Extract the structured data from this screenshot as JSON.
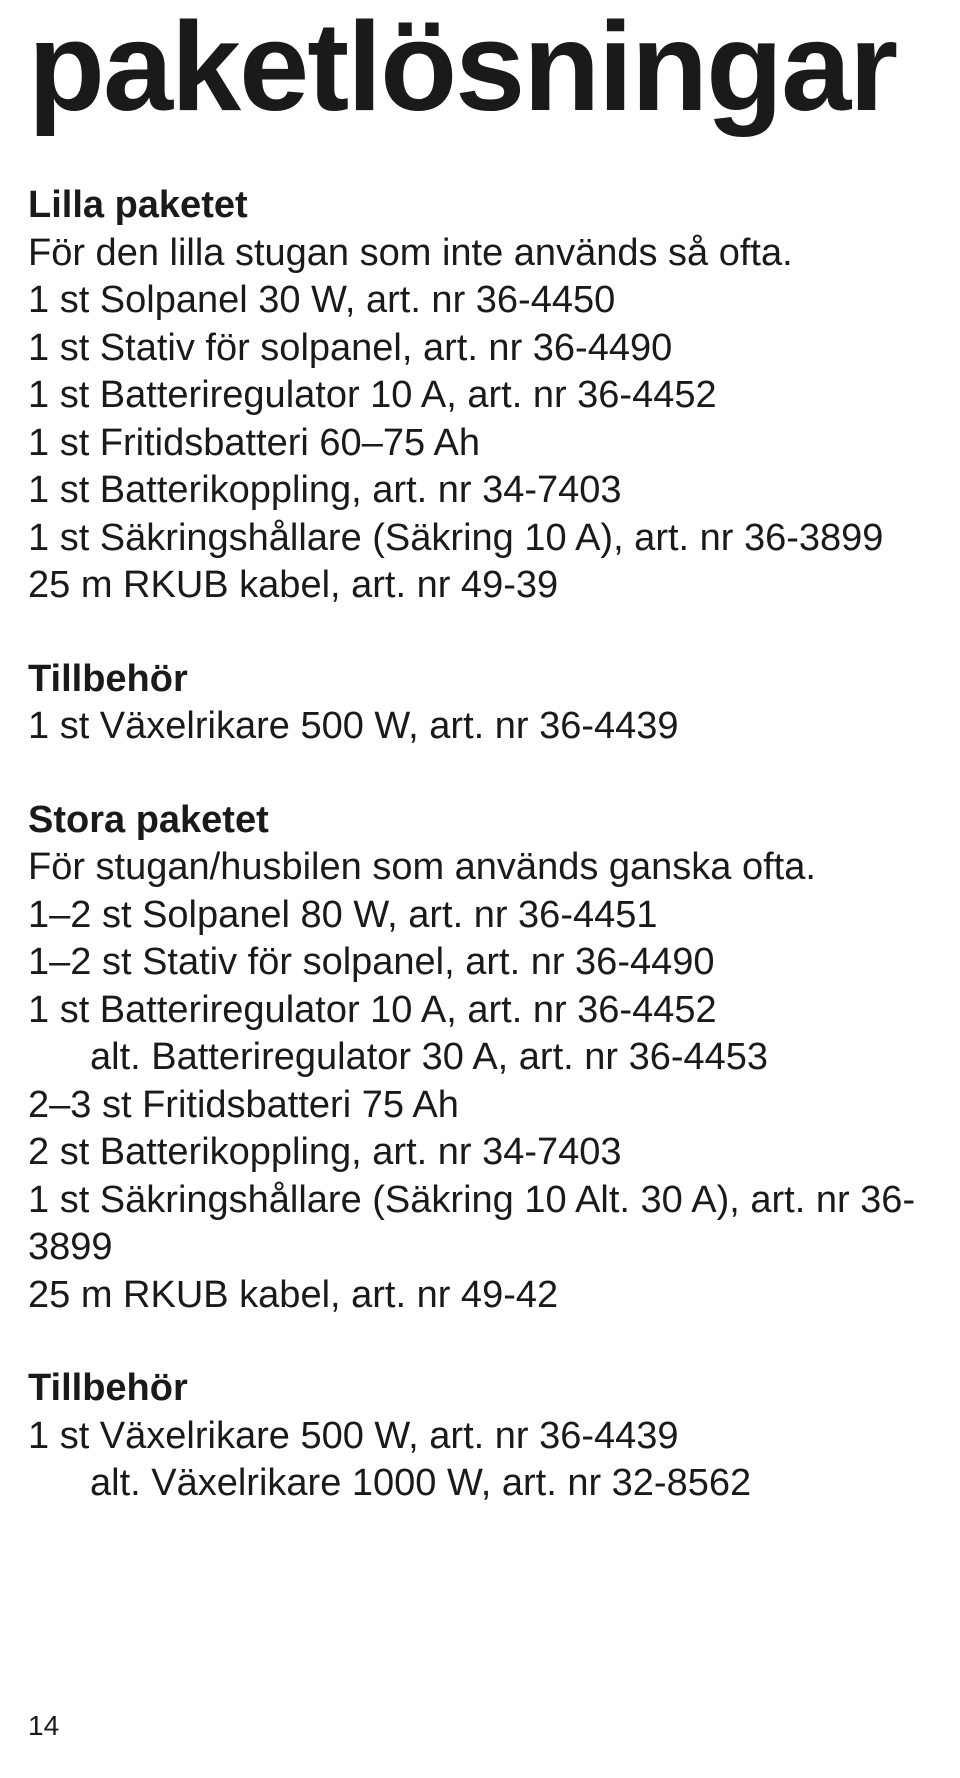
{
  "title": "paketlösningar",
  "lilla": {
    "heading": "Lilla paketet",
    "desc": "För den lilla stugan som inte används så ofta.",
    "lines": [
      "1 st Solpanel 30 W, art. nr 36-4450",
      "1 st Stativ för solpanel, art. nr 36-4490",
      "1 st Batteriregulator 10 A, art. nr 36-4452",
      "1 st Fritidsbatteri 60–75 Ah",
      "1 st Batterikoppling, art. nr 34-7403",
      "1 st Säkringshållare (Säkring 10 A), art. nr 36-3899",
      "25 m RKUB kabel, art. nr 49-39"
    ]
  },
  "tillbehor1": {
    "heading": "Tillbehör",
    "line": "1 st Växelrikare 500 W, art. nr 36-4439"
  },
  "stora": {
    "heading": "Stora paketet",
    "desc": "För stugan/husbilen som används ganska ofta.",
    "lines": [
      "1–2 st Solpanel 80 W, art. nr 36-4451",
      "1–2 st Stativ för solpanel, art. nr 36-4490",
      "1 st Batteriregulator 10 A, art. nr 36-4452"
    ],
    "alt1": "alt. Batteriregulator 30 A, art. nr 36-4453",
    "lines2": [
      "2–3 st Fritidsbatteri 75 Ah",
      "2 st Batterikoppling, art. nr 34-7403",
      "1 st Säkringshållare (Säkring 10 Alt. 30 A), art. nr 36-3899",
      "25 m RKUB kabel, art. nr 49-42"
    ]
  },
  "tillbehor2": {
    "heading": "Tillbehör",
    "line": "1 st Växelrikare 500 W, art. nr 36-4439",
    "alt": "alt. Växelrikare 1000 W, art. nr 32-8562"
  },
  "pageNumber": "14"
}
